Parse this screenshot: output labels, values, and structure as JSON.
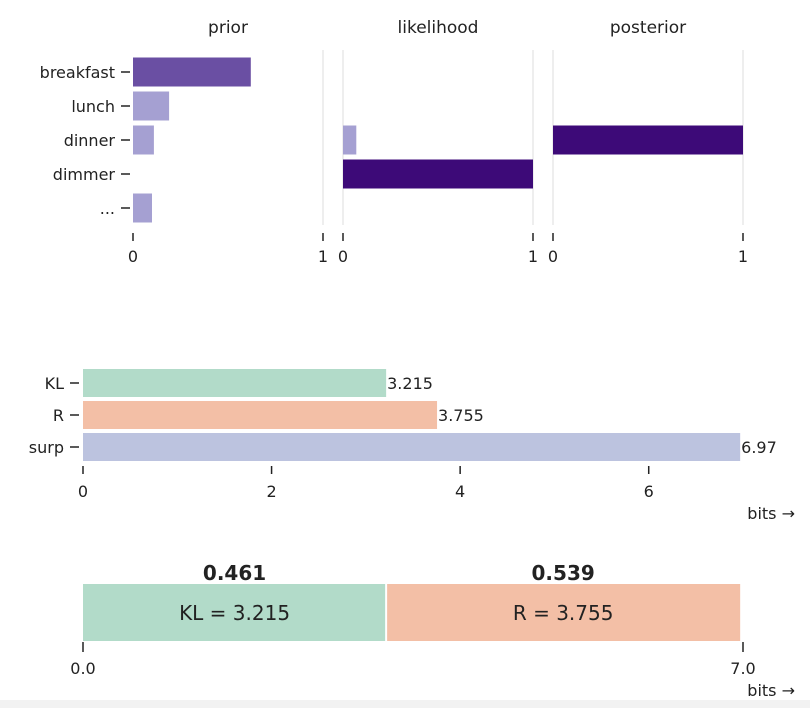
{
  "chart_data": [
    {
      "type": "bar",
      "orientation": "horizontal",
      "panels": [
        {
          "title": "prior",
          "values": [
            0.62,
            0.19,
            0.11,
            0.0,
            0.1
          ],
          "color": "#6a4fa3",
          "xlim": [
            0,
            1
          ],
          "ticks": [
            "0",
            "1"
          ]
        },
        {
          "title": "likelihood",
          "values": [
            0.0,
            0.0,
            0.07,
            1.0,
            0.0
          ],
          "color": "#3d0a78",
          "xlim": [
            0,
            1
          ],
          "ticks": [
            "0",
            "1"
          ]
        },
        {
          "title": "posterior",
          "values": [
            0.0,
            0.0,
            1.0,
            0.0,
            0.0
          ],
          "color": "#3d0a78",
          "xlim": [
            0,
            1
          ],
          "ticks": [
            "0",
            "1"
          ]
        }
      ],
      "categories": [
        "breakfast",
        "lunch",
        "dinner",
        "dimmer",
        "..."
      ],
      "highlight_color": "#3d0a78",
      "faded_color": "#a5a0d2",
      "gridlines": true
    },
    {
      "type": "bar",
      "orientation": "horizontal",
      "categories": [
        "KL",
        "R",
        "surp"
      ],
      "values": [
        3.215,
        3.755,
        6.97
      ],
      "value_labels": [
        "3.215",
        "3.755",
        "6.97"
      ],
      "colors": [
        "#b2dbc9",
        "#f3bfa6",
        "#bcc3df"
      ],
      "xlim": [
        0,
        7
      ],
      "xticks": [
        "0",
        "2",
        "4",
        "6"
      ],
      "xlabel": "bits →"
    },
    {
      "type": "bar",
      "orientation": "stacked-horizontal",
      "segments": [
        {
          "label": "KL = 3.215",
          "value": 3.215,
          "share": "0.461",
          "color": "#b2dbc9"
        },
        {
          "label": "R = 3.755",
          "value": 3.755,
          "share": "0.539",
          "color": "#f3bfa6"
        }
      ],
      "xlim": [
        0,
        7
      ],
      "xticks": [
        "0.0",
        "7.0"
      ],
      "xlabel": "bits →"
    }
  ]
}
